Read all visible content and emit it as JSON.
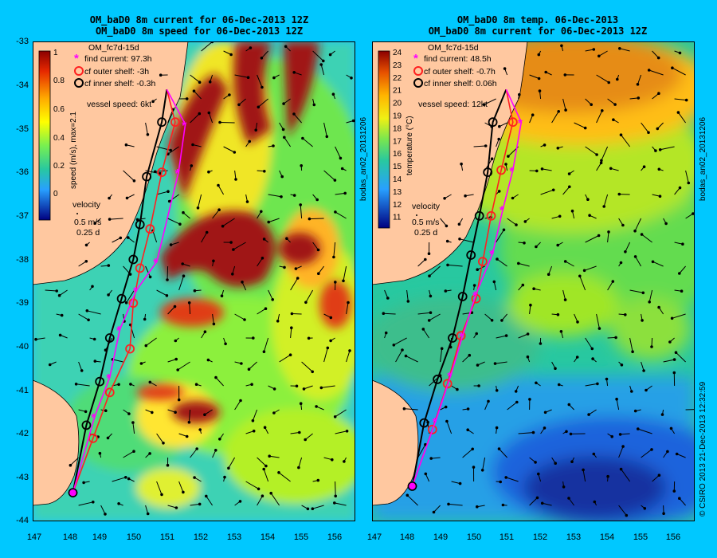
{
  "left_panel": {
    "title_line1": "OM_baD0 8m current for 06-Dec-2013 12Z",
    "title_line2": "OM_baD0 8m speed for 06-Dec-2013 12Z",
    "legend_header": "OM_fc7d-15d",
    "legend": [
      "find current: 97.3h",
      "cf outer shelf: -3h",
      "cf inner shelf: -0.3h"
    ],
    "vessel_speed": "vessel speed: 6kt",
    "colorbar_label": "speed (m/s), max=2.1",
    "colorbar_ticks": [
      "1",
      "0.8",
      "0.6",
      "0.4",
      "0.2",
      "0"
    ],
    "velocity_label": "velocity",
    "velocity_scale": "0.5 m/s",
    "velocity_time": "0.25 d",
    "side_label": "bodas_an02_20131206"
  },
  "right_panel": {
    "title_line1": "OM_baD0 8m temp. 06-Dec-2013",
    "title_line2": "OM_baD0 8m current for 06-Dec-2013 12Z",
    "legend_header": "OM_fc7d-15d",
    "legend": [
      "find current: 48.5h",
      "cf outer shelf: -0.7h",
      "cf inner shelf: 0.06h"
    ],
    "vessel_speed": "vessel speed: 12kt",
    "colorbar_label": "temperature (°C)",
    "colorbar_ticks": [
      "24",
      "23",
      "22",
      "21",
      "20",
      "19",
      "18",
      "17",
      "16",
      "15",
      "14",
      "13",
      "12",
      "11"
    ],
    "velocity_label": "velocity",
    "velocity_scale": "0.5 m/s",
    "velocity_time": "0.25 d",
    "side_label": "bodas_an02_20131206"
  },
  "y_ticks": [
    "-33",
    "-34",
    "-35",
    "-36",
    "-37",
    "-38",
    "-39",
    "-40",
    "-41",
    "-42",
    "-43",
    "-44"
  ],
  "x_ticks": [
    "147",
    "148",
    "149",
    "150",
    "151",
    "152",
    "153",
    "154",
    "155",
    "156"
  ],
  "copyright": "© CSIRO 2013   21-Dec-2013 12:32:59",
  "colors": {
    "background": "#00c8ff",
    "find_current": "#ff00ff",
    "outer_shelf": "#ff2020",
    "inner_shelf": "#000000",
    "land": "#ffc8a0"
  },
  "routes": {
    "left": {
      "find": [
        [
          148.2,
          -43.35
        ],
        [
          148.85,
          -41.6
        ],
        [
          149.3,
          -40.7
        ],
        [
          149.6,
          -39.6
        ],
        [
          150.1,
          -38.7
        ],
        [
          150.7,
          -38.05
        ],
        [
          151.35,
          -36.0
        ],
        [
          151.55,
          -34.9
        ],
        [
          151.0,
          -34.1
        ]
      ],
      "outer": [
        [
          148.2,
          -43.35
        ],
        [
          148.8,
          -42.1
        ],
        [
          149.3,
          -41.05
        ],
        [
          149.9,
          -40.05
        ],
        [
          150.0,
          -39.0
        ],
        [
          150.2,
          -38.2
        ],
        [
          150.5,
          -37.3
        ],
        [
          150.85,
          -36.0
        ],
        [
          151.25,
          -34.85
        ],
        [
          151.0,
          -34.1
        ]
      ],
      "inner": [
        [
          148.2,
          -43.35
        ],
        [
          148.6,
          -41.8
        ],
        [
          149.0,
          -40.8
        ],
        [
          149.3,
          -39.8
        ],
        [
          149.65,
          -38.9
        ],
        [
          150.0,
          -38.0
        ],
        [
          150.2,
          -37.2
        ],
        [
          150.4,
          -36.1
        ],
        [
          150.85,
          -34.85
        ],
        [
          151.0,
          -34.1
        ]
      ]
    },
    "right": {
      "find": [
        [
          148.2,
          -43.2
        ],
        [
          148.9,
          -41.7
        ],
        [
          149.35,
          -40.65
        ],
        [
          149.7,
          -39.75
        ],
        [
          150.1,
          -38.8
        ],
        [
          150.6,
          -37.85
        ],
        [
          150.9,
          -36.85
        ],
        [
          151.2,
          -35.95
        ],
        [
          151.45,
          -34.85
        ],
        [
          151.0,
          -34.1
        ]
      ],
      "outer": [
        [
          148.2,
          -43.2
        ],
        [
          148.8,
          -41.9
        ],
        [
          149.25,
          -40.85
        ],
        [
          149.65,
          -39.75
        ],
        [
          150.1,
          -38.9
        ],
        [
          150.3,
          -38.05
        ],
        [
          150.55,
          -37.0
        ],
        [
          150.85,
          -35.95
        ],
        [
          151.2,
          -34.85
        ],
        [
          151.0,
          -34.1
        ]
      ],
      "inner": [
        [
          148.2,
          -43.2
        ],
        [
          148.55,
          -41.75
        ],
        [
          148.95,
          -40.75
        ],
        [
          149.4,
          -39.8
        ],
        [
          149.7,
          -38.85
        ],
        [
          149.95,
          -37.9
        ],
        [
          150.2,
          -37.0
        ],
        [
          150.45,
          -36.0
        ],
        [
          150.6,
          -34.85
        ],
        [
          151.0,
          -34.1
        ]
      ]
    }
  }
}
